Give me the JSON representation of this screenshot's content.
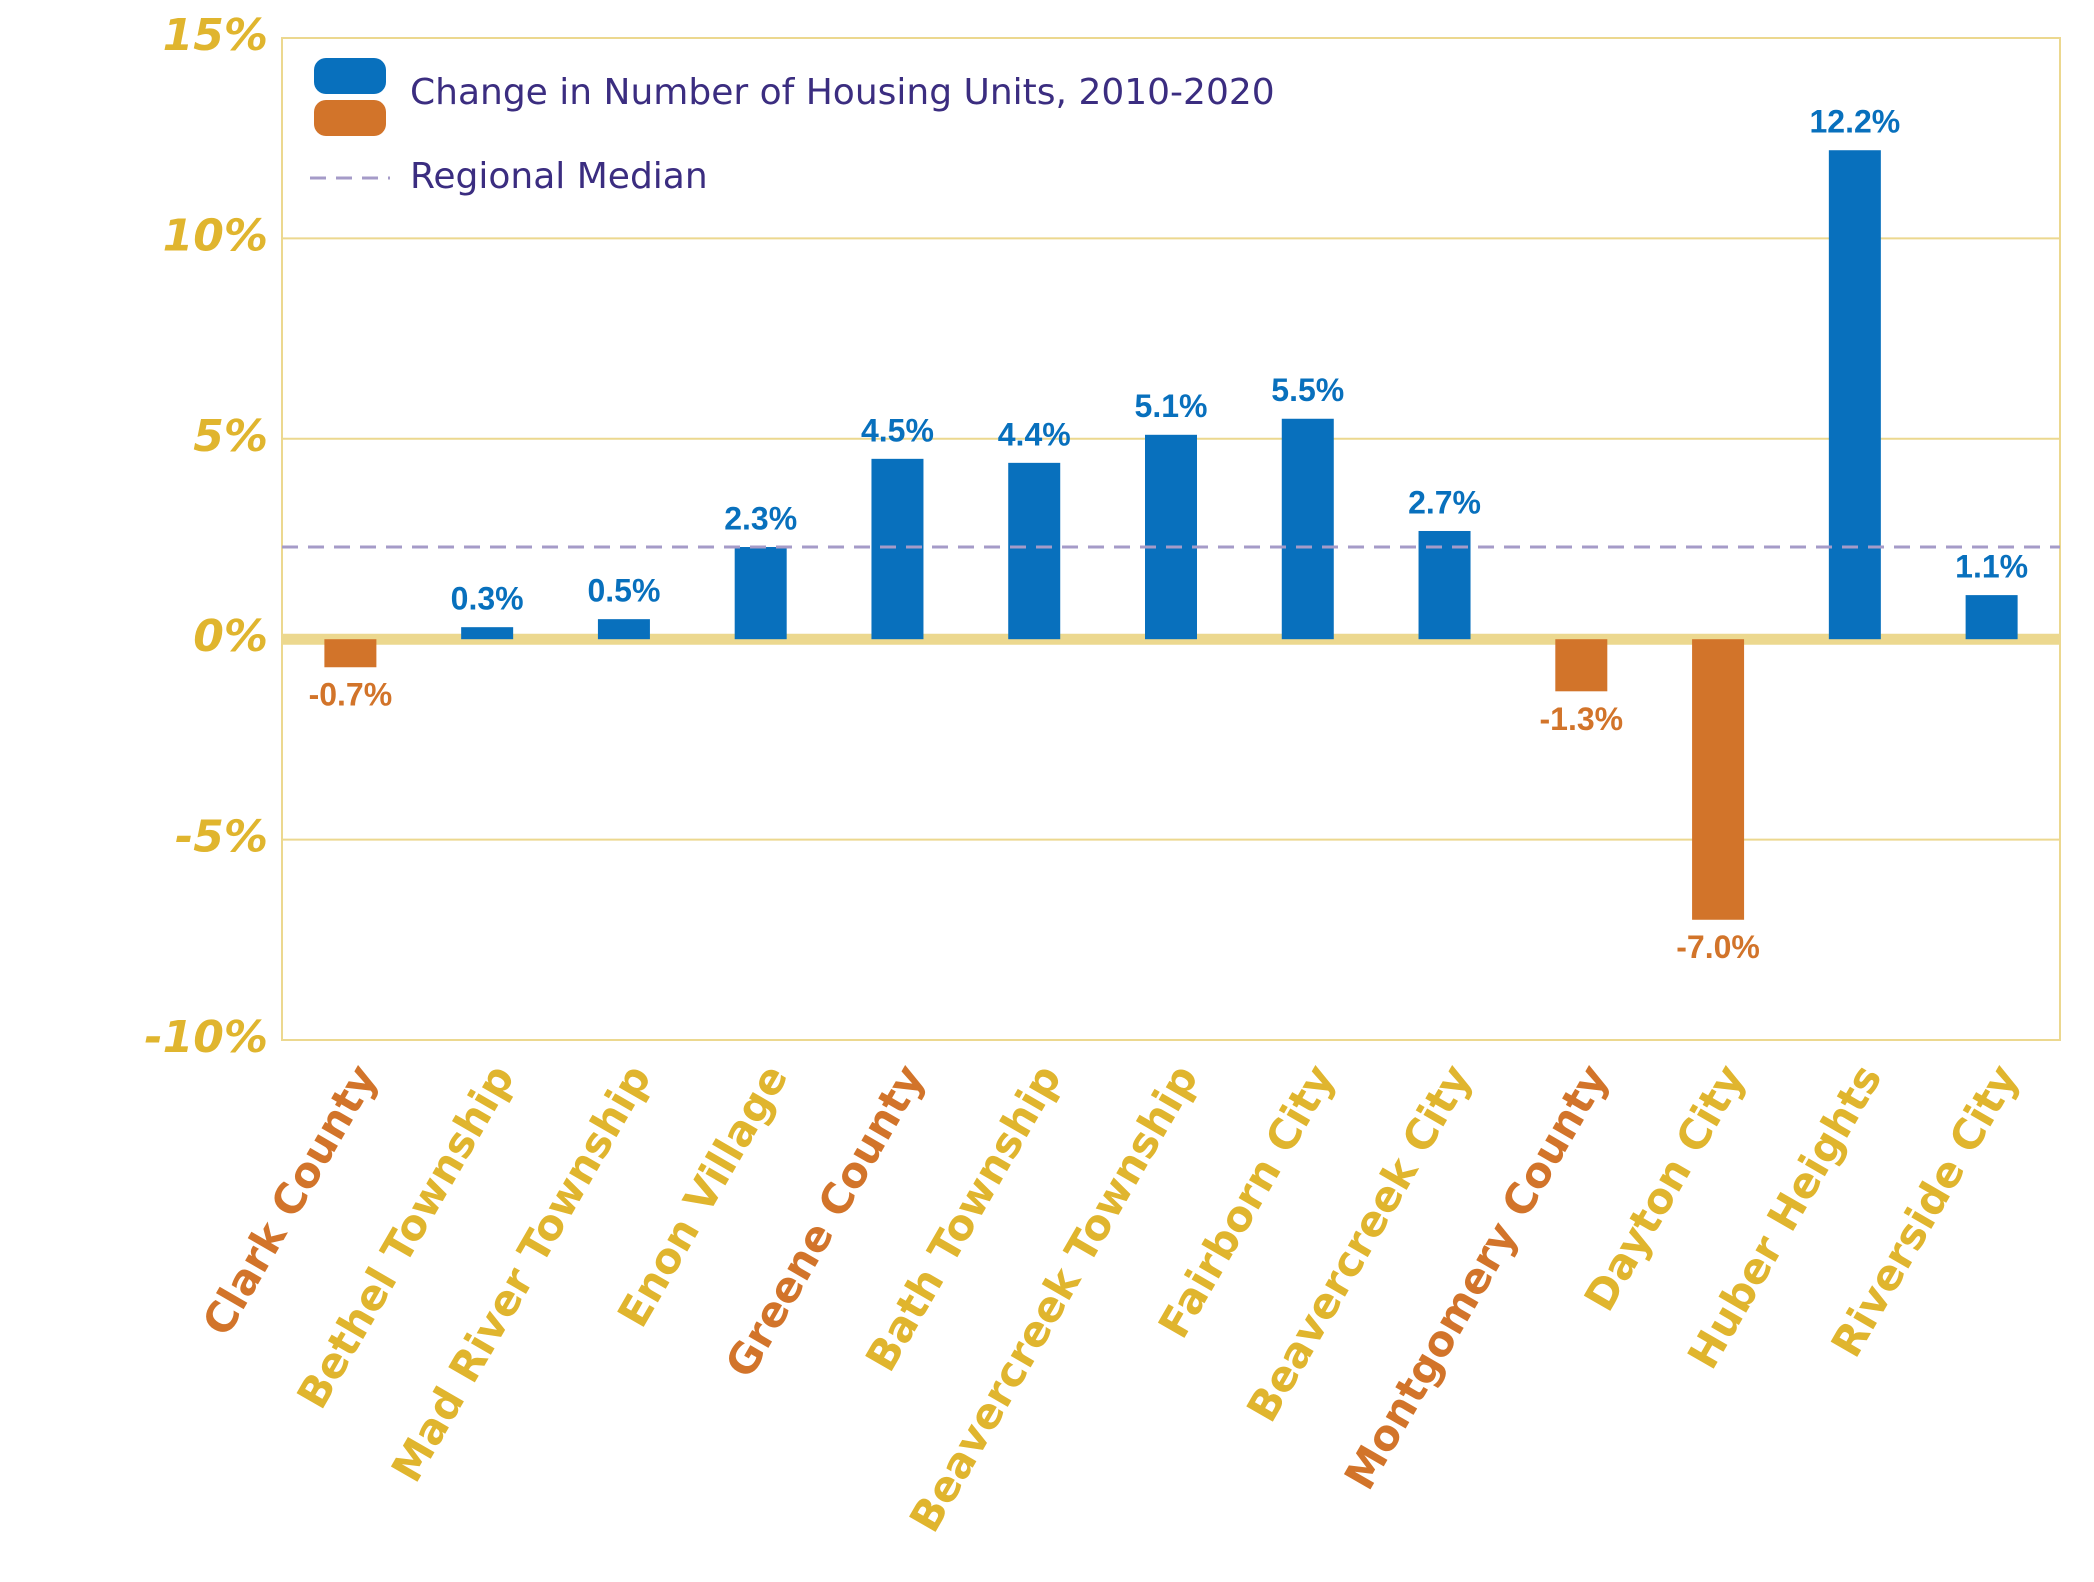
{
  "chart_data": {
    "type": "bar",
    "categories": [
      "Clark County",
      "Bethel Township",
      "Mad River Township",
      "Enon Village",
      "Greene County",
      "Bath Township",
      "Beavercreek Township",
      "Fairborn City",
      "Beavercreek City",
      "Montgomery County",
      "Dayton City",
      "Huber Heights",
      "Riverside City"
    ],
    "category_colors": [
      "#d2742a",
      "#e0b52e",
      "#e0b52e",
      "#e0b52e",
      "#d2742a",
      "#e0b52e",
      "#e0b52e",
      "#e0b52e",
      "#e0b52e",
      "#d2742a",
      "#e0b52e",
      "#e0b52e",
      "#e0b52e"
    ],
    "series": [
      {
        "name": "Change in Number of Housing Units, 2010-2020",
        "colors": [
          "#d2742a",
          "#0870bd",
          "#0870bd",
          "#0870bd",
          "#0870bd",
          "#0870bd",
          "#0870bd",
          "#0870bd",
          "#0870bd",
          "#d2742a",
          "#d2742a",
          "#0870bd",
          "#0870bd"
        ],
        "values": [
          -0.7,
          0.3,
          0.5,
          2.3,
          4.5,
          4.4,
          5.1,
          5.5,
          2.7,
          -1.3,
          -7.0,
          12.2,
          1.1
        ],
        "value_labels": [
          "-0.7%",
          "0.3%",
          "0.5%",
          "2.3%",
          "4.5%",
          "4.4%",
          "5.1%",
          "5.5%",
          "2.7%",
          "-1.3%",
          "-7.0%",
          "12.2%",
          "1.1%"
        ]
      }
    ],
    "median": {
      "name": "Regional Median",
      "value": 2.3,
      "color": "#a59bc8"
    },
    "ylim": [
      -10,
      15
    ],
    "yticks": [
      {
        "value": -10,
        "label": "-10%"
      },
      {
        "value": -5,
        "label": "-5%"
      },
      {
        "value": 0,
        "label": "0%"
      },
      {
        "value": 5,
        "label": "5%"
      },
      {
        "value": 10,
        "label": "10%"
      },
      {
        "value": 15,
        "label": "15%"
      }
    ],
    "grid": true,
    "legend": "top-left"
  }
}
